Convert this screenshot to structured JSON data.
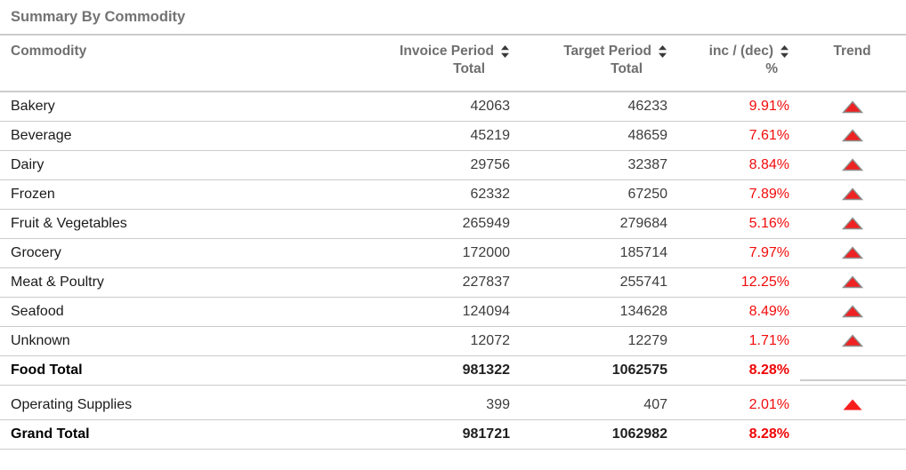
{
  "title": "Summary By Commodity",
  "colors": {
    "title_gray": "#737373",
    "header_gray": "#6f6f6f",
    "row_text": "#1b1b1b",
    "number_text": "#3d3d3d",
    "percent_red": "#f20b0b",
    "trend_fill_red": "#ee2222",
    "trend_bright_red": "#f71d1d",
    "trend_stroke_gray": "#8f8f8f",
    "border_gray": "#cccccc"
  },
  "table": {
    "headers": {
      "commodity": "Commodity",
      "invoice": {
        "line1": "Invoice Period",
        "line2": "Total"
      },
      "target": {
        "line1": "Target Period",
        "line2": "Total"
      },
      "pct": {
        "line1": "inc / (dec)",
        "line2": "%"
      },
      "trend": "Trend"
    },
    "sort_icon": "sort-up-down-icon",
    "trend_icon": "triangle-up-icon",
    "rows": [
      {
        "name": "Bakery",
        "invoice": "42063",
        "target": "46233",
        "pct": "9.91%",
        "trend": "up",
        "bold": false,
        "section_break": false
      },
      {
        "name": "Beverage",
        "invoice": "45219",
        "target": "48659",
        "pct": "7.61%",
        "trend": "up",
        "bold": false,
        "section_break": false
      },
      {
        "name": "Dairy",
        "invoice": "29756",
        "target": "32387",
        "pct": "8.84%",
        "trend": "up",
        "bold": false,
        "section_break": false
      },
      {
        "name": "Frozen",
        "invoice": "62332",
        "target": "67250",
        "pct": "7.89%",
        "trend": "up",
        "bold": false,
        "section_break": false
      },
      {
        "name": "Fruit & Vegetables",
        "invoice": "265949",
        "target": "279684",
        "pct": "5.16%",
        "trend": "up",
        "bold": false,
        "section_break": false
      },
      {
        "name": "Grocery",
        "invoice": "172000",
        "target": "185714",
        "pct": "7.97%",
        "trend": "up",
        "bold": false,
        "section_break": false
      },
      {
        "name": "Meat & Poultry",
        "invoice": "227837",
        "target": "255741",
        "pct": "12.25%",
        "trend": "up",
        "bold": false,
        "section_break": false
      },
      {
        "name": "Seafood",
        "invoice": "124094",
        "target": "134628",
        "pct": "8.49%",
        "trend": "up",
        "bold": false,
        "section_break": false
      },
      {
        "name": "Unknown",
        "invoice": "12072",
        "target": "12279",
        "pct": "1.71%",
        "trend": "up",
        "bold": false,
        "section_break": false
      },
      {
        "name": "Food Total",
        "invoice": "981322",
        "target": "1062575",
        "pct": "8.28%",
        "trend": "none",
        "bold": true,
        "section_break": false
      },
      {
        "name": "Operating Supplies",
        "invoice": "399",
        "target": "407",
        "pct": "2.01%",
        "trend": "up-plain",
        "bold": false,
        "section_break": true
      },
      {
        "name": "Grand Total",
        "invoice": "981721",
        "target": "1062982",
        "pct": "8.28%",
        "trend": "none",
        "bold": true,
        "section_break": false
      }
    ]
  }
}
